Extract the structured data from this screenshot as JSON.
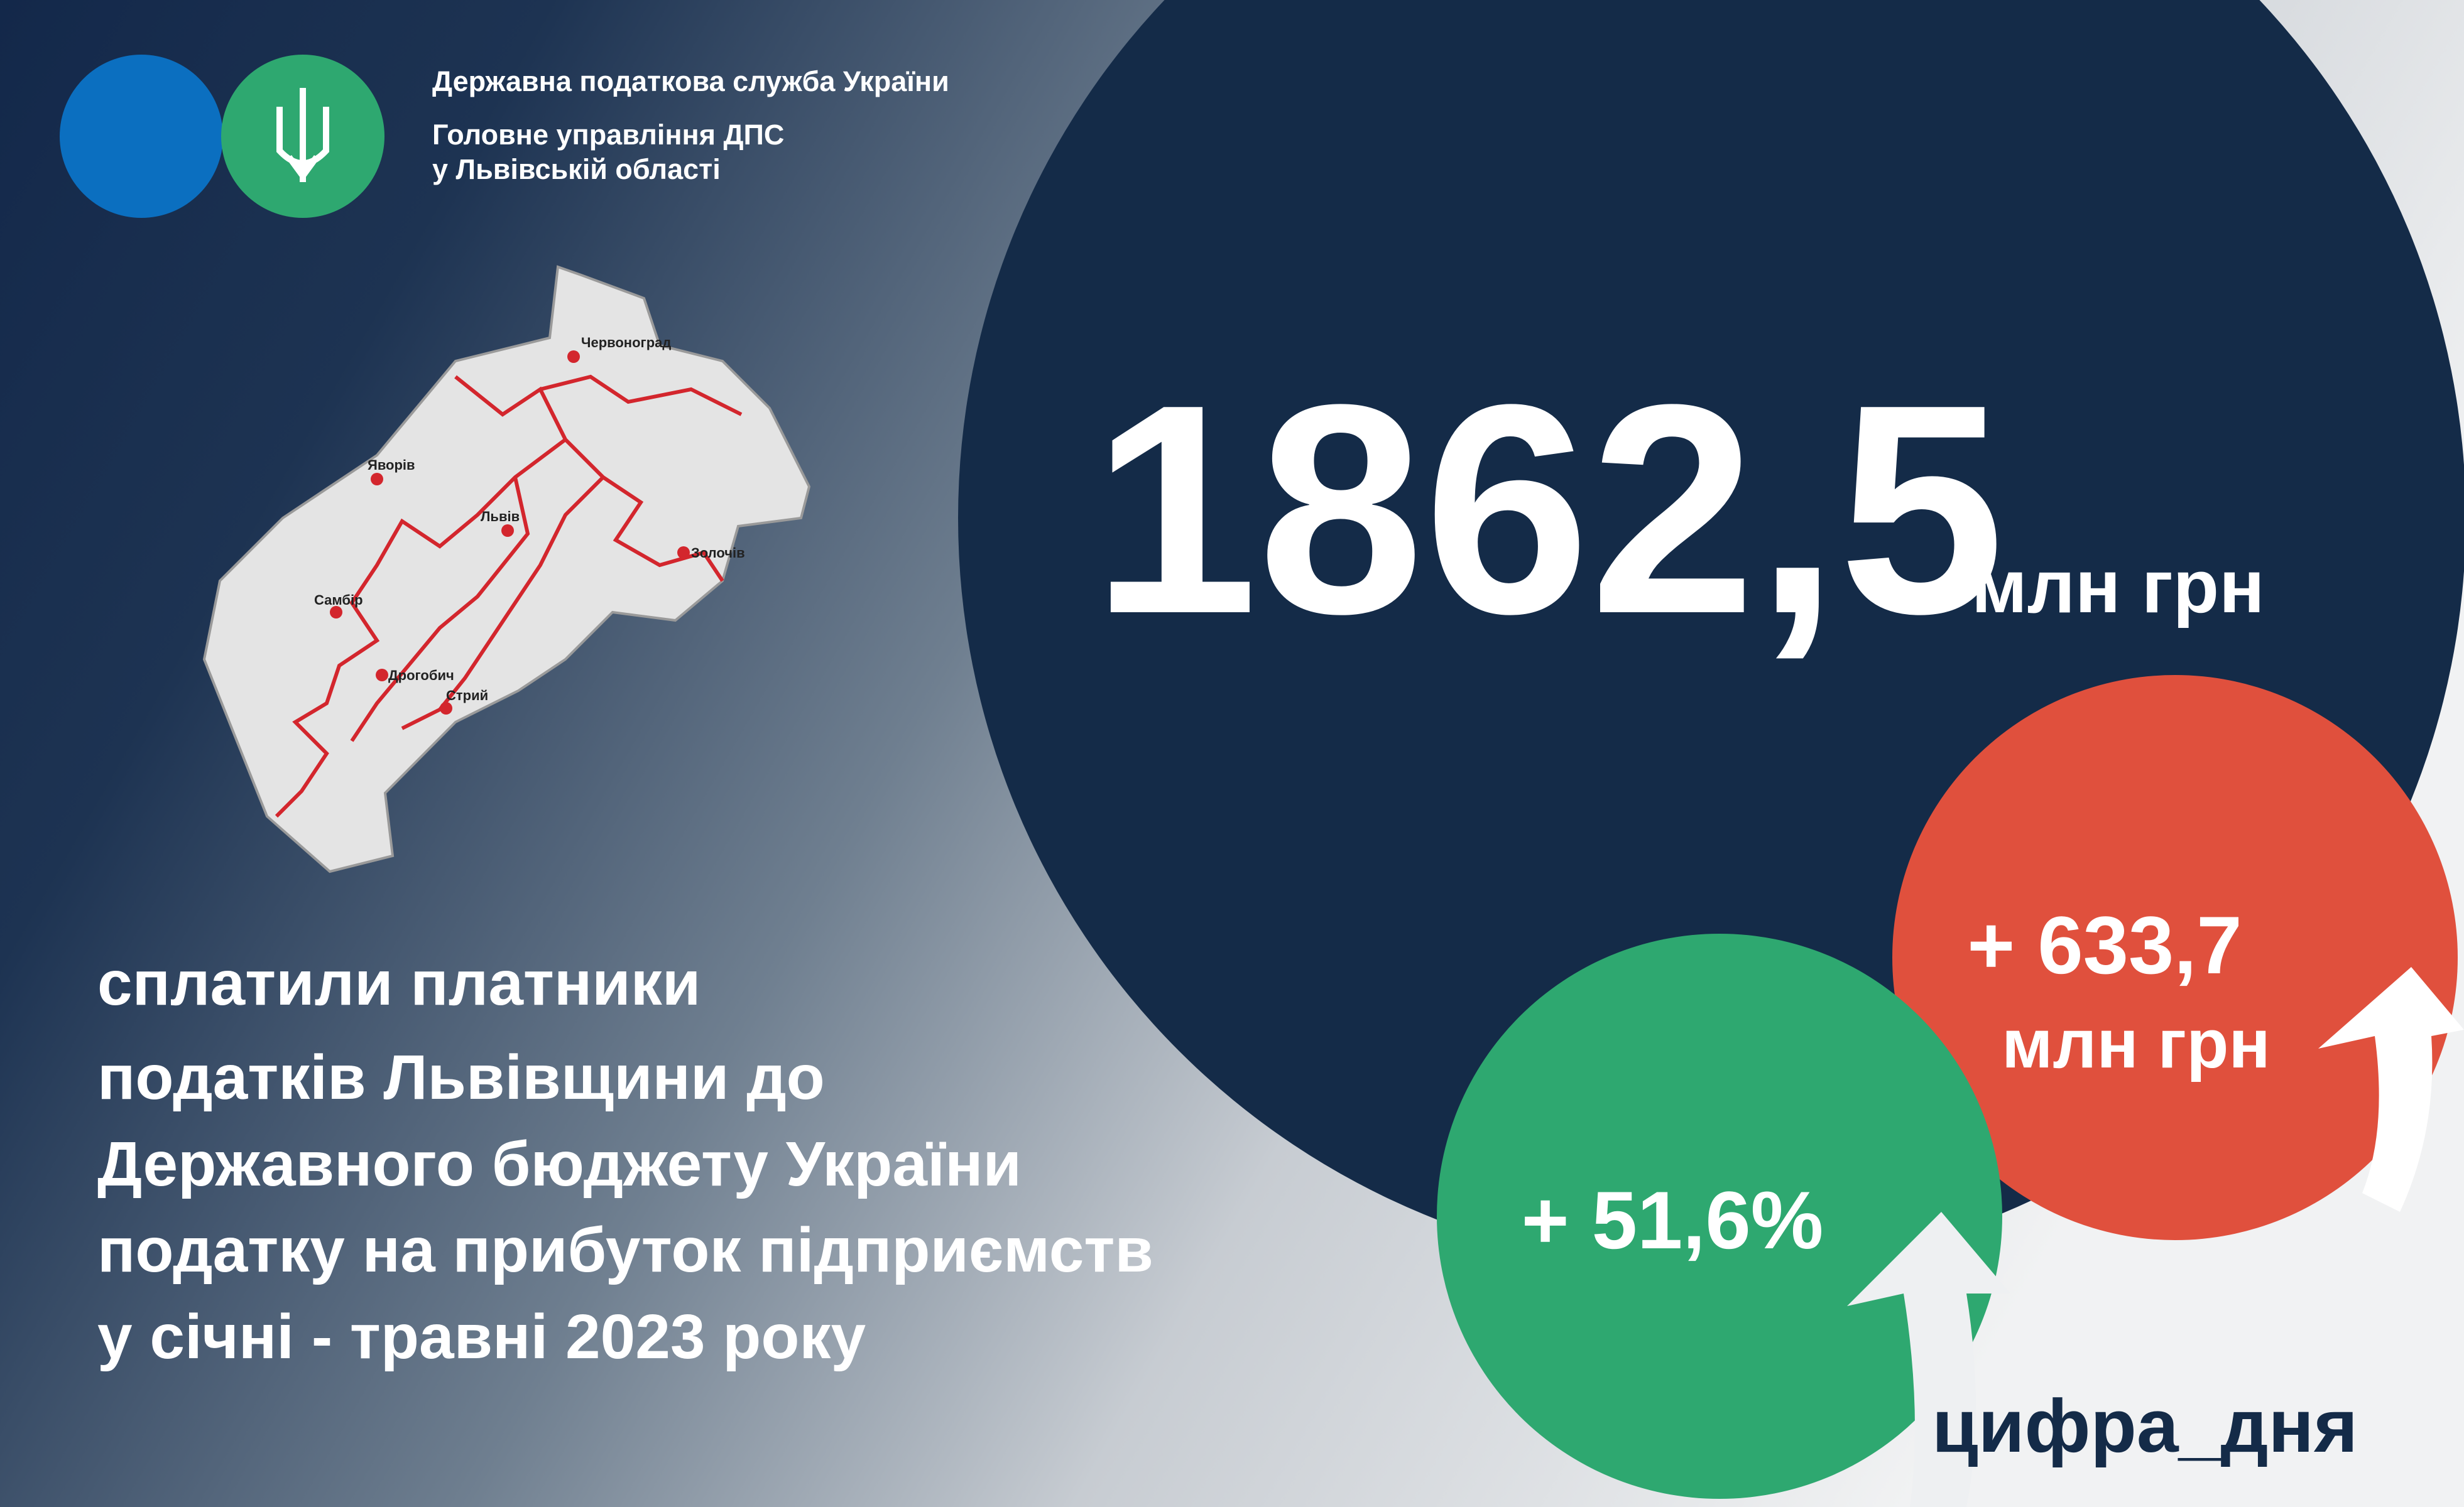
{
  "header": {
    "lines": [
      "Державна податкова служба України",
      "Головне управління ДПС",
      "у Львівській області"
    ]
  },
  "map": {
    "cities": [
      "Червоноград",
      "Яворів",
      "Львів",
      "Золочів",
      "Самбір",
      "Дрогобич",
      "Стрий"
    ]
  },
  "main": {
    "amount": "1862,5",
    "unit": "млн грн"
  },
  "description": {
    "lines": [
      "сплатили платники",
      "податків Львівщини до",
      "Державного бюджету України",
      "податку на прибуток підприємств",
      "у січні - травні 2023 року"
    ]
  },
  "growth": {
    "absolute": "+ 633,7",
    "absolute_unit": "млн грн",
    "percent": "+ 51,6%"
  },
  "hashtag": "цифра_дня"
}
